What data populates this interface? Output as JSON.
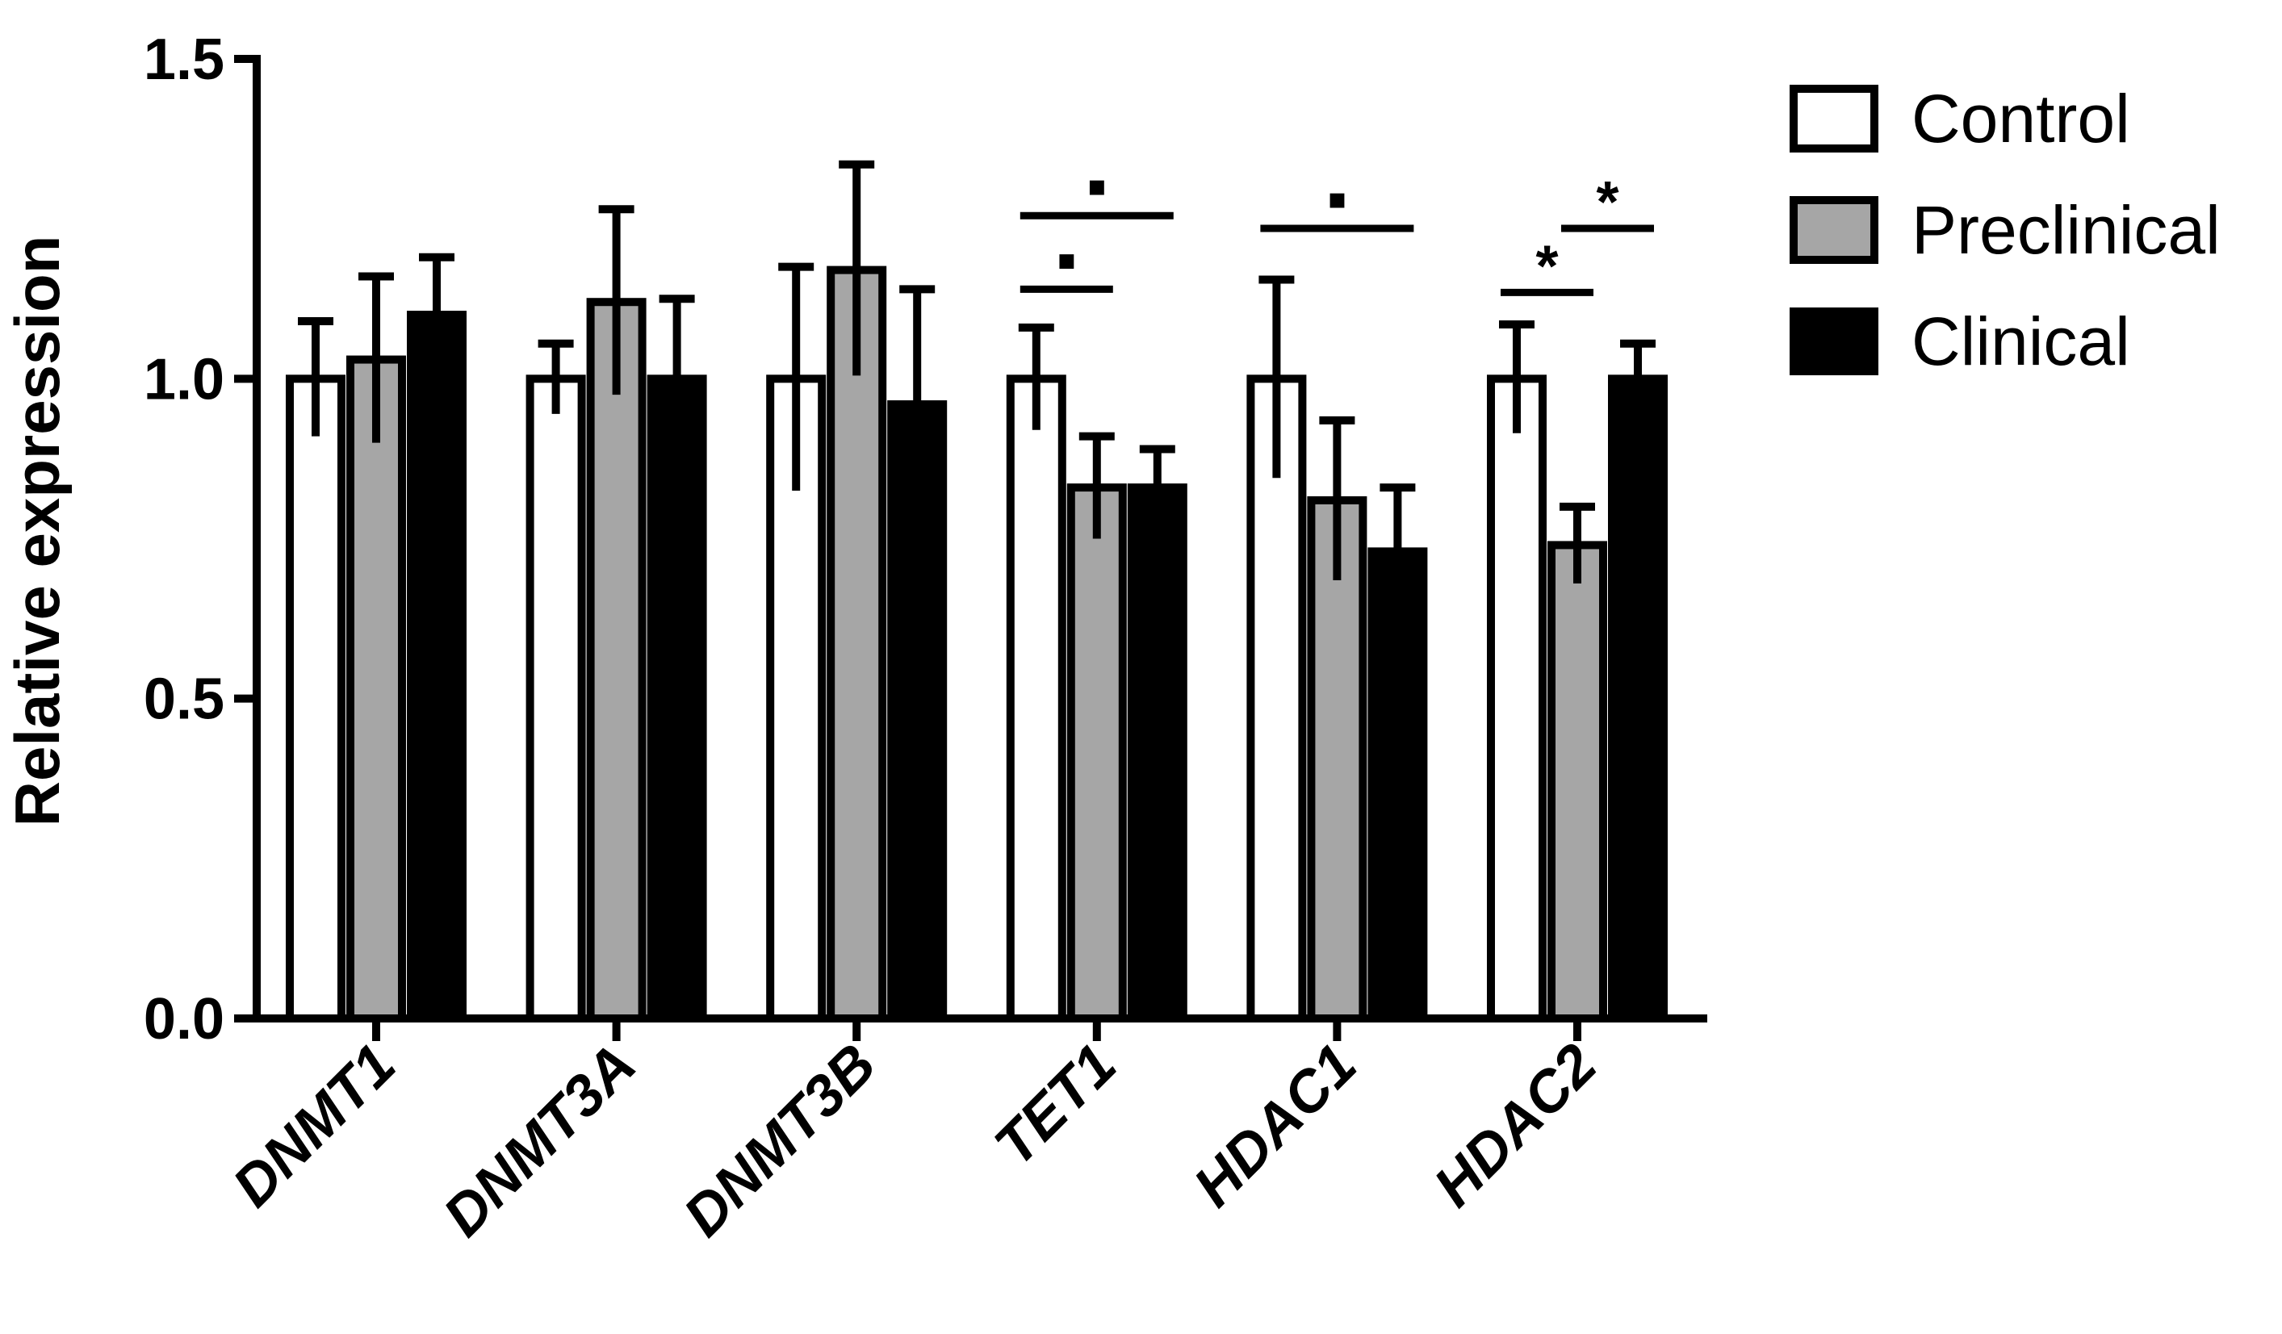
{
  "chart_data": {
    "type": "bar",
    "title": "",
    "xlabel": "",
    "ylabel": "Relative expression",
    "ylim": [
      0,
      1.5
    ],
    "yticks": [
      0.0,
      0.5,
      1.0,
      1.5
    ],
    "ytick_labels": [
      "0.0",
      "0.5",
      "1.0",
      "1.5"
    ],
    "categories": [
      "DNMT1",
      "DNMT3A",
      "DNMT3B",
      "TET1",
      "HDAC1",
      "HDAC2"
    ],
    "series": [
      {
        "name": "Control",
        "color": "#ffffff",
        "values": [
          1.0,
          1.0,
          1.0,
          1.0,
          1.0,
          1.0
        ],
        "errors": [
          0.09,
          0.055,
          0.175,
          0.08,
          0.155,
          0.085
        ]
      },
      {
        "name": "Preclinical",
        "color": "#a6a6a6",
        "values": [
          1.03,
          1.12,
          1.17,
          0.83,
          0.81,
          0.74
        ],
        "errors": [
          0.13,
          0.145,
          0.165,
          0.08,
          0.125,
          0.06
        ]
      },
      {
        "name": "Clinical",
        "color": "#000000",
        "values": [
          1.1,
          1.0,
          0.96,
          0.83,
          0.73,
          1.0
        ],
        "errors": [
          0.09,
          0.125,
          0.18,
          0.06,
          0.1,
          0.055
        ]
      }
    ],
    "significance": [
      {
        "category": "TET1",
        "from": 0,
        "to": 1,
        "label": "▪",
        "y": 1.14
      },
      {
        "category": "TET1",
        "from": 0,
        "to": 2,
        "label": "▪",
        "y": 1.255
      },
      {
        "category": "HDAC1",
        "from": 0,
        "to": 2,
        "label": "▪",
        "y": 1.235
      },
      {
        "category": "HDAC2",
        "from": 0,
        "to": 1,
        "label": "*",
        "y": 1.135
      },
      {
        "category": "HDAC2",
        "from": 1,
        "to": 2,
        "label": "*",
        "y": 1.235
      }
    ],
    "grid": false,
    "legend_position": "top-right"
  }
}
